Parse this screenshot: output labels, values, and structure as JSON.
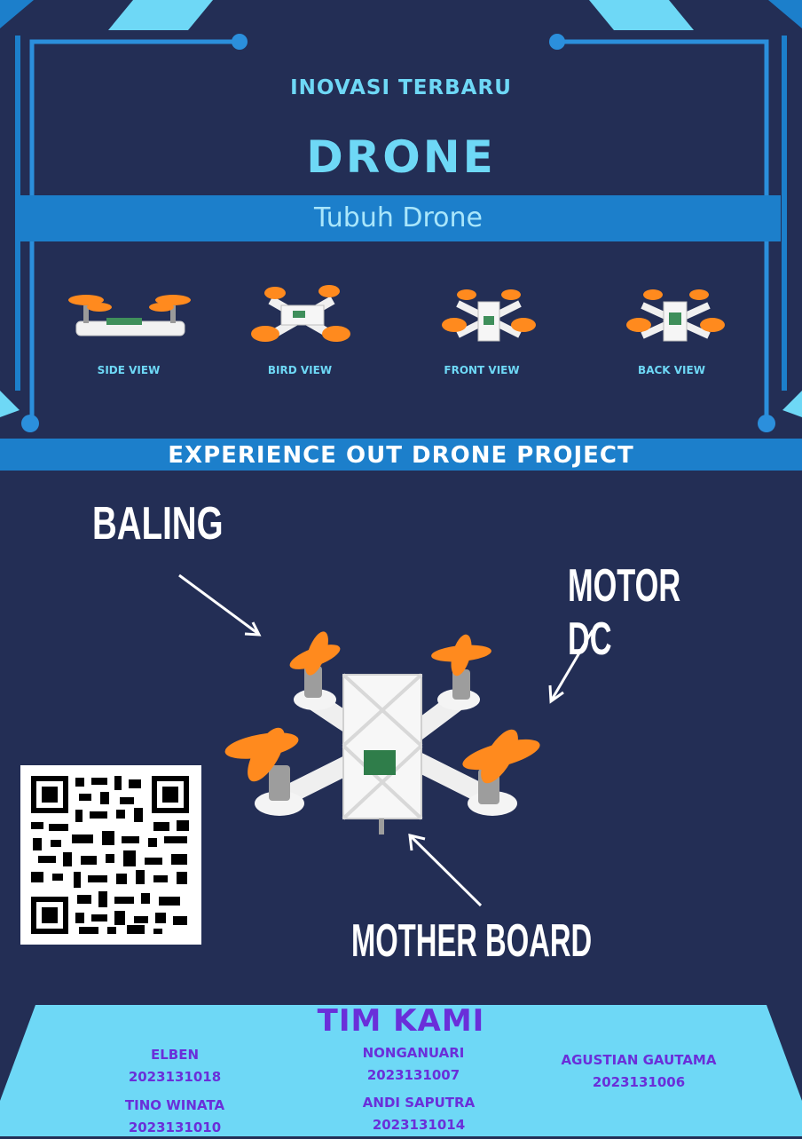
{
  "header": {
    "subtitle": "INOVASI TERBARU",
    "title": "DRONE",
    "section_label": "Tubuh Drone"
  },
  "views": [
    {
      "label": "SIDE VIEW"
    },
    {
      "label": "BIRD VIEW"
    },
    {
      "label": "FRONT VIEW"
    },
    {
      "label": "BACK VIEW"
    }
  ],
  "experience": {
    "title": "EXPERIENCE OUT DRONE PROJECT"
  },
  "callouts": {
    "baling": "BALING",
    "motor": "MOTOR DC",
    "board": "MOTHER BOARD"
  },
  "team": {
    "title": "TIM KAMI",
    "members": [
      {
        "name": "ELBEN",
        "id": "2023131018"
      },
      {
        "name": "NONGANUARI",
        "id": "2023131007"
      },
      {
        "name": "AGUSTIAN GAUTAMA",
        "id": "2023131006"
      },
      {
        "name": "TINO WINATA",
        "id": "2023131010"
      },
      {
        "name": "ANDI SAPUTRA",
        "id": "2023131014"
      }
    ]
  },
  "colors": {
    "background": "#232e55",
    "accent_light": "#6ed8f6",
    "accent_band": "#1c7fcb",
    "team_text": "#6a2fd9",
    "propeller": "#ff8a1e"
  }
}
